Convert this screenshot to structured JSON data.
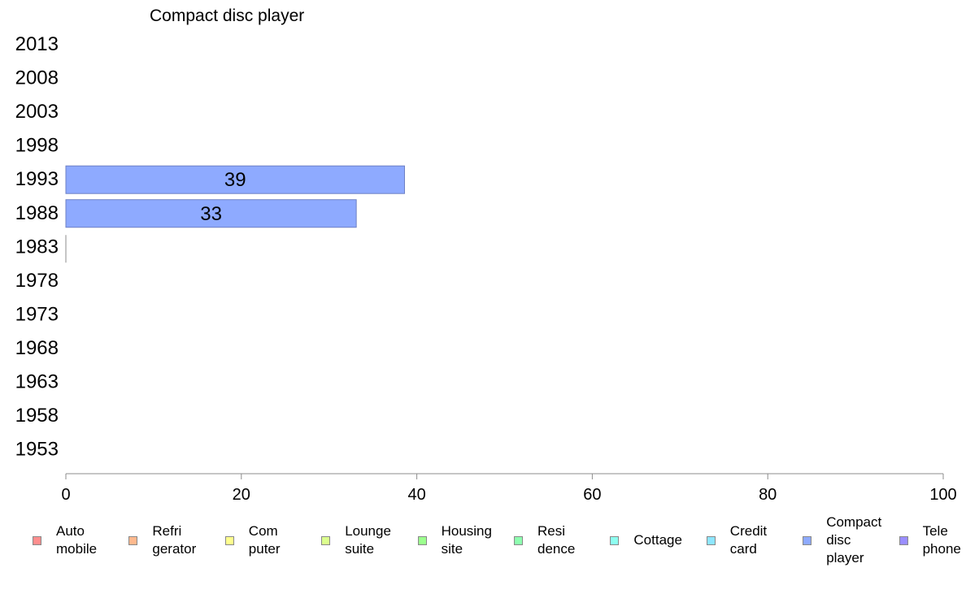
{
  "chart_data": {
    "type": "bar",
    "orientation": "horizontal",
    "title": "Compact disc player",
    "categories": [
      "2013",
      "2008",
      "2003",
      "1998",
      "1993",
      "1988",
      "1983",
      "1978",
      "1973",
      "1968",
      "1963",
      "1958",
      "1953"
    ],
    "series": [
      {
        "name": "Compact disc player",
        "color": "#8eaaff",
        "values": [
          null,
          null,
          null,
          null,
          38.6,
          33.1,
          0,
          null,
          null,
          null,
          null,
          null,
          null
        ],
        "data_labels": [
          "",
          "",
          "",
          "",
          "39",
          "33",
          "",
          "",
          "",
          "",
          "",
          "",
          ""
        ]
      }
    ],
    "xlim": [
      0,
      100
    ],
    "xticks": [
      "0",
      "20",
      "40",
      "60",
      "80",
      "100"
    ],
    "xlabel": "",
    "ylabel": "",
    "grid": false,
    "legend_position": "bottom"
  },
  "legend": [
    {
      "lines": [
        "Auto",
        "mobile"
      ],
      "color": "#ff8e8e"
    },
    {
      "lines": [
        "Refri",
        "gerator"
      ],
      "color": "#ffb98e"
    },
    {
      "lines": [
        "Com",
        "puter"
      ],
      "color": "#ffff8e"
    },
    {
      "lines": [
        "Lounge",
        "suite"
      ],
      "color": "#dcff8e"
    },
    {
      "lines": [
        "Housing",
        "site"
      ],
      "color": "#9cff8e"
    },
    {
      "lines": [
        "Resi",
        "dence"
      ],
      "color": "#8effb0"
    },
    {
      "lines": [
        "Cottage"
      ],
      "color": "#8efff0"
    },
    {
      "lines": [
        "Credit",
        "card"
      ],
      "color": "#8ee6ff"
    },
    {
      "lines": [
        "Compact",
        "disc",
        "player"
      ],
      "color": "#8eaaff"
    },
    {
      "lines": [
        "Tele",
        "phone"
      ],
      "color": "#9a8eff"
    }
  ]
}
